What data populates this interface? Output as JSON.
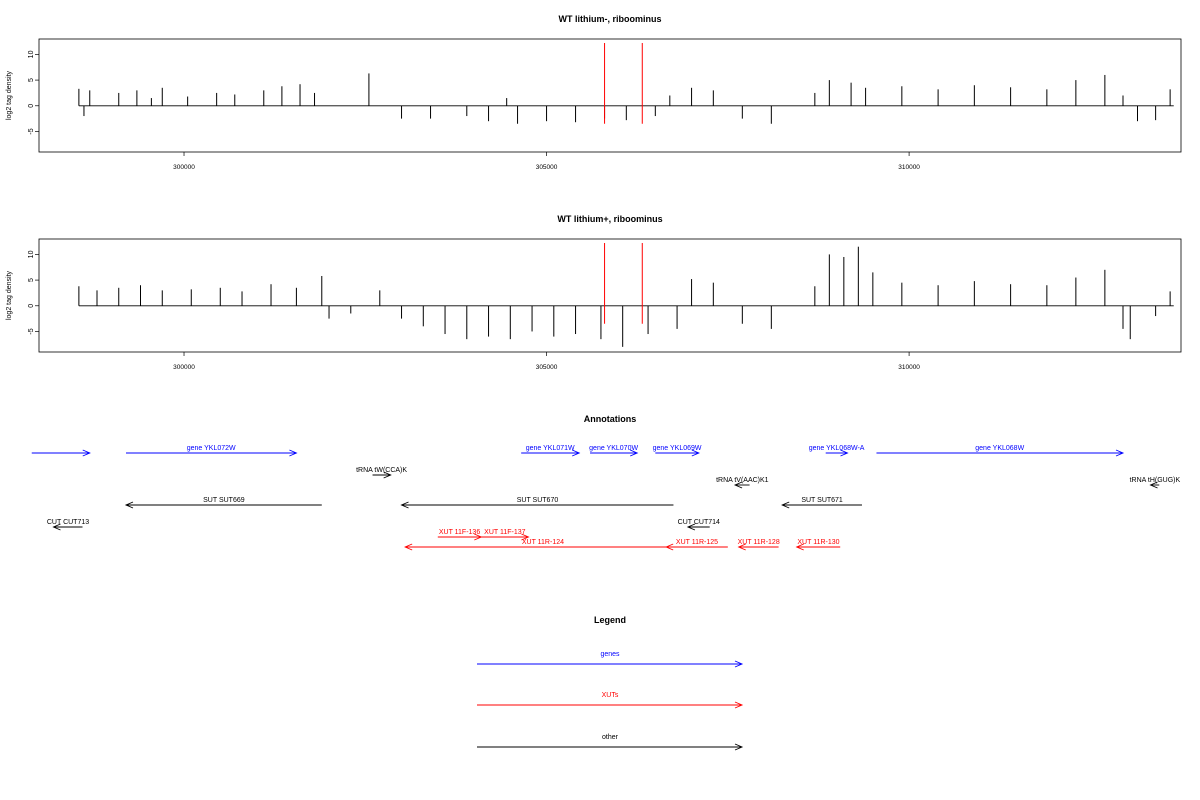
{
  "chart_data": [
    {
      "type": "bar",
      "title": "WT lithium-, riboominus",
      "ylabel": "log2 tag density",
      "xlim": [
        298000,
        313750
      ],
      "ylim": [
        -9,
        13
      ],
      "yticks": [
        -5,
        0,
        5,
        10
      ],
      "xticks": [
        300000,
        305000,
        310000
      ],
      "markers": [
        305800,
        306320
      ],
      "series": [
        {
          "values": [
            [
              298550,
              3.3
            ],
            [
              298620,
              -2.0
            ],
            [
              298700,
              3.0
            ],
            [
              299100,
              2.5
            ],
            [
              299350,
              3.0
            ],
            [
              299550,
              1.5
            ],
            [
              299700,
              3.5
            ],
            [
              300050,
              1.8
            ],
            [
              300450,
              2.5
            ],
            [
              300700,
              2.2
            ],
            [
              301100,
              3.0
            ],
            [
              301350,
              3.8
            ],
            [
              301600,
              4.2
            ],
            [
              301800,
              2.5
            ],
            [
              302550,
              6.3
            ],
            [
              303000,
              -2.5
            ],
            [
              303400,
              -2.5
            ],
            [
              303900,
              -2.0
            ],
            [
              304200,
              -3.0
            ],
            [
              304450,
              1.5
            ],
            [
              304600,
              -3.5
            ],
            [
              305000,
              -3.0
            ],
            [
              305400,
              -3.2
            ],
            [
              305800,
              -2.5
            ],
            [
              306100,
              -2.8
            ],
            [
              306500,
              -2.0
            ],
            [
              306700,
              2.0
            ],
            [
              307000,
              3.5
            ],
            [
              307300,
              3.0
            ],
            [
              307700,
              -2.5
            ],
            [
              308100,
              -3.5
            ],
            [
              308700,
              2.5
            ],
            [
              308900,
              5.0
            ],
            [
              309200,
              4.5
            ],
            [
              309400,
              3.5
            ],
            [
              309900,
              3.8
            ],
            [
              310400,
              3.2
            ],
            [
              310900,
              4.0
            ],
            [
              311400,
              3.6
            ],
            [
              311900,
              3.2
            ],
            [
              312300,
              5.0
            ],
            [
              312700,
              6.0
            ],
            [
              312950,
              2.0
            ],
            [
              313150,
              -3.0
            ],
            [
              313400,
              -2.8
            ],
            [
              313600,
              3.2
            ]
          ]
        }
      ]
    },
    {
      "type": "bar",
      "title": "WT lithium+, riboominus",
      "ylabel": "log2 tag density",
      "xlim": [
        298000,
        313750
      ],
      "ylim": [
        -9,
        13
      ],
      "yticks": [
        -5,
        0,
        5,
        10
      ],
      "xticks": [
        300000,
        305000,
        310000
      ],
      "markers": [
        305800,
        306320
      ],
      "series": [
        {
          "values": [
            [
              298550,
              3.8
            ],
            [
              298800,
              3.0
            ],
            [
              299100,
              3.5
            ],
            [
              299400,
              4.0
            ],
            [
              299700,
              3.0
            ],
            [
              300100,
              3.2
            ],
            [
              300500,
              3.5
            ],
            [
              300800,
              2.8
            ],
            [
              301200,
              4.2
            ],
            [
              301550,
              3.5
            ],
            [
              301900,
              5.8
            ],
            [
              302000,
              -2.5
            ],
            [
              302300,
              -1.5
            ],
            [
              302700,
              3.0
            ],
            [
              303000,
              -2.5
            ],
            [
              303300,
              -4.0
            ],
            [
              303600,
              -5.5
            ],
            [
              303900,
              -6.5
            ],
            [
              304200,
              -6.0
            ],
            [
              304500,
              -6.5
            ],
            [
              304800,
              -5.0
            ],
            [
              305100,
              -6.0
            ],
            [
              305400,
              -5.5
            ],
            [
              305750,
              -6.5
            ],
            [
              306050,
              -8.0
            ],
            [
              306400,
              -5.5
            ],
            [
              306800,
              -4.5
            ],
            [
              307000,
              5.2
            ],
            [
              307300,
              4.5
            ],
            [
              307700,
              -3.5
            ],
            [
              308100,
              -4.5
            ],
            [
              308700,
              3.8
            ],
            [
              308900,
              10.0
            ],
            [
              309100,
              9.5
            ],
            [
              309300,
              11.5
            ],
            [
              309500,
              6.5
            ],
            [
              309900,
              4.5
            ],
            [
              310400,
              4.0
            ],
            [
              310900,
              4.8
            ],
            [
              311400,
              4.2
            ],
            [
              311900,
              4.0
            ],
            [
              312300,
              5.5
            ],
            [
              312700,
              7.0
            ],
            [
              312950,
              -4.5
            ],
            [
              313050,
              -6.5
            ],
            [
              313400,
              -2.0
            ],
            [
              313600,
              2.8
            ]
          ]
        }
      ]
    },
    {
      "type": "other",
      "title": "Annotations",
      "xlim": [
        298000,
        313750
      ],
      "features": [
        {
          "label": "",
          "kind": "gene",
          "start": 297900,
          "end": 298700,
          "strand": "+",
          "row": 0
        },
        {
          "label": "gene YKL072W",
          "kind": "gene",
          "start": 299200,
          "end": 301550,
          "strand": "+",
          "row": 0
        },
        {
          "label": "gene YKL071W",
          "kind": "gene",
          "start": 304650,
          "end": 305450,
          "strand": "+",
          "row": 0
        },
        {
          "label": "gene YKL070W",
          "kind": "gene",
          "start": 305600,
          "end": 306250,
          "strand": "+",
          "row": 0
        },
        {
          "label": "gene YKL069W",
          "kind": "gene",
          "start": 306500,
          "end": 307100,
          "strand": "+",
          "row": 0
        },
        {
          "label": "gene YKL068W-A",
          "kind": "gene",
          "start": 308850,
          "end": 309150,
          "strand": "+",
          "row": 0
        },
        {
          "label": "gene YKL068W",
          "kind": "gene",
          "start": 309550,
          "end": 312950,
          "strand": "+",
          "row": 0
        },
        {
          "label": "tRNA tW(CCA)K",
          "kind": "other",
          "start": 302600,
          "end": 302850,
          "strand": "+",
          "row": 1
        },
        {
          "label": "tRNA tV(AAC)K1",
          "kind": "other",
          "start": 307600,
          "end": 307800,
          "strand": "-",
          "row": 2
        },
        {
          "label": "tRNA tH(GUG)K",
          "kind": "other",
          "start": 313330,
          "end": 313450,
          "strand": "-",
          "row": 2
        },
        {
          "label": "SUT SUT669",
          "kind": "other",
          "start": 299200,
          "end": 301900,
          "strand": "-",
          "row": 3
        },
        {
          "label": "SUT SUT670",
          "kind": "other",
          "start": 303000,
          "end": 306750,
          "strand": "-",
          "row": 3
        },
        {
          "label": "SUT SUT671",
          "kind": "other",
          "start": 308250,
          "end": 309350,
          "strand": "-",
          "row": 3
        },
        {
          "label": "CUT CUT713",
          "kind": "other",
          "start": 298200,
          "end": 298600,
          "strand": "-",
          "row": 4
        },
        {
          "label": "CUT CUT714",
          "kind": "other",
          "start": 306950,
          "end": 307250,
          "strand": "-",
          "row": 4
        },
        {
          "label": "XUT 11F-136",
          "kind": "XUT",
          "start": 303500,
          "end": 304100,
          "strand": "+",
          "row": 5
        },
        {
          "label": "XUT 11F-137",
          "kind": "XUT",
          "start": 304100,
          "end": 304750,
          "strand": "+",
          "row": 5
        },
        {
          "label": "XUT 11R-124",
          "kind": "XUT",
          "start": 303050,
          "end": 306850,
          "strand": "-",
          "row": 6
        },
        {
          "label": "XUT 11R-125",
          "kind": "XUT",
          "start": 306650,
          "end": 307500,
          "strand": "-",
          "row": 6
        },
        {
          "label": "XUT 11R-128",
          "kind": "XUT",
          "start": 307650,
          "end": 308200,
          "strand": "-",
          "row": 6
        },
        {
          "label": "XUT 11R-130",
          "kind": "XUT",
          "start": 308450,
          "end": 309050,
          "strand": "-",
          "row": 6
        }
      ]
    },
    {
      "type": "other",
      "title": "Legend",
      "entries": [
        {
          "label": "genes",
          "color": "#0000ff"
        },
        {
          "label": "XUTs",
          "color": "#ff0000"
        },
        {
          "label": "other",
          "color": "#000000"
        }
      ]
    }
  ],
  "colors": {
    "gene": "#0000ff",
    "XUT": "#ff0000",
    "other": "#000000",
    "marker": "#ff0000",
    "bars": "#000000"
  }
}
